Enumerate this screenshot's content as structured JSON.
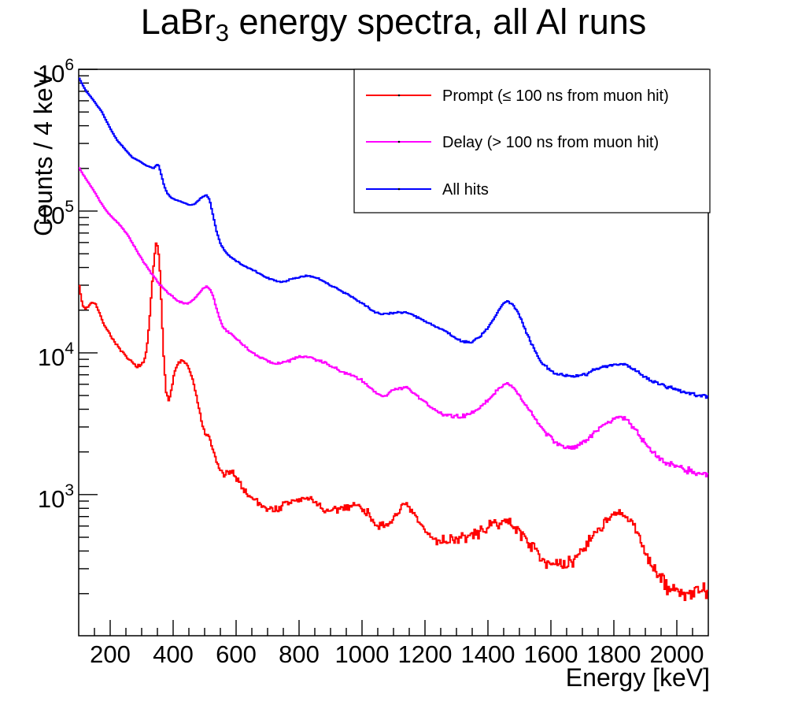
{
  "title": {
    "prefix": "LaBr",
    "subscript": "3",
    "suffix": " energy spectra, all Al runs"
  },
  "chart_data": {
    "type": "line",
    "style": "histogram-step",
    "title": "LaBr3 energy spectra, all Al runs",
    "xlabel": "Energy [keV]",
    "ylabel": "Counts / 4 keV",
    "xlim": [
      100,
      2100
    ],
    "ylim": [
      101,
      1000000
    ],
    "yscale": "log",
    "grid": false,
    "bin_width_kev": 4,
    "xticks_major": [
      200,
      400,
      600,
      800,
      1000,
      1200,
      1400,
      1600,
      1800,
      2000
    ],
    "xtick_minor_step": 50,
    "yticks_major_exponents": [
      3,
      4,
      5,
      6
    ],
    "legend": {
      "position": "top-right",
      "entries": [
        "Prompt (≤ 100 ns from muon hit)",
        "Delay (> 100 ns from muon hit)",
        "All hits"
      ]
    },
    "noise_model": {
      "type": "poisson-approx",
      "seed": 7,
      "amplitude": 2.5
    },
    "series": [
      {
        "name": "Prompt (≤ 100 ns from muon hit)",
        "color": "#ff0000",
        "keypoints": [
          [
            100,
            33000
          ],
          [
            104,
            27500
          ],
          [
            108,
            24000
          ],
          [
            114,
            21500
          ],
          [
            120,
            20500
          ],
          [
            128,
            21000
          ],
          [
            136,
            22000
          ],
          [
            144,
            22800
          ],
          [
            152,
            22500
          ],
          [
            160,
            20500
          ],
          [
            170,
            18000
          ],
          [
            180,
            16000
          ],
          [
            195,
            14000
          ],
          [
            212,
            12200
          ],
          [
            230,
            10600
          ],
          [
            250,
            9400
          ],
          [
            268,
            8600
          ],
          [
            282,
            8100
          ],
          [
            296,
            8100
          ],
          [
            308,
            8600
          ],
          [
            316,
            10500
          ],
          [
            324,
            16000
          ],
          [
            332,
            28000
          ],
          [
            340,
            46000
          ],
          [
            346,
            59000
          ],
          [
            352,
            56000
          ],
          [
            358,
            38000
          ],
          [
            364,
            19000
          ],
          [
            370,
            9500
          ],
          [
            378,
            5400
          ],
          [
            386,
            4600
          ],
          [
            394,
            5400
          ],
          [
            404,
            7200
          ],
          [
            416,
            8500
          ],
          [
            428,
            8800
          ],
          [
            440,
            8500
          ],
          [
            452,
            7600
          ],
          [
            464,
            6200
          ],
          [
            476,
            4700
          ],
          [
            488,
            3500
          ],
          [
            498,
            2800
          ],
          [
            508,
            2600
          ],
          [
            518,
            2400
          ],
          [
            528,
            2000
          ],
          [
            540,
            1650
          ],
          [
            552,
            1450
          ],
          [
            564,
            1380
          ],
          [
            576,
            1420
          ],
          [
            590,
            1400
          ],
          [
            605,
            1300
          ],
          [
            620,
            1120
          ],
          [
            640,
            990
          ],
          [
            660,
            920
          ],
          [
            680,
            850
          ],
          [
            700,
            800
          ],
          [
            720,
            780
          ],
          [
            740,
            810
          ],
          [
            760,
            860
          ],
          [
            780,
            900
          ],
          [
            805,
            920
          ],
          [
            830,
            940
          ],
          [
            855,
            890
          ],
          [
            875,
            790
          ],
          [
            893,
            740
          ],
          [
            912,
            770
          ],
          [
            940,
            810
          ],
          [
            965,
            840
          ],
          [
            985,
            840
          ],
          [
            1005,
            790
          ],
          [
            1030,
            690
          ],
          [
            1055,
            600
          ],
          [
            1075,
            570
          ],
          [
            1095,
            660
          ],
          [
            1115,
            770
          ],
          [
            1132,
            830
          ],
          [
            1150,
            800
          ],
          [
            1170,
            690
          ],
          [
            1195,
            570
          ],
          [
            1220,
            500
          ],
          [
            1245,
            470
          ],
          [
            1270,
            480
          ],
          [
            1300,
            490
          ],
          [
            1330,
            500
          ],
          [
            1365,
            530
          ],
          [
            1400,
            590
          ],
          [
            1430,
            630
          ],
          [
            1455,
            650
          ],
          [
            1480,
            610
          ],
          [
            1510,
            520
          ],
          [
            1545,
            420
          ],
          [
            1580,
            350
          ],
          [
            1615,
            315
          ],
          [
            1645,
            310
          ],
          [
            1675,
            350
          ],
          [
            1710,
            440
          ],
          [
            1745,
            550
          ],
          [
            1775,
            650
          ],
          [
            1800,
            710
          ],
          [
            1820,
            730
          ],
          [
            1842,
            690
          ],
          [
            1865,
            590
          ],
          [
            1890,
            450
          ],
          [
            1915,
            340
          ],
          [
            1945,
            255
          ],
          [
            1975,
            220
          ],
          [
            2010,
            205
          ],
          [
            2050,
            200
          ],
          [
            2075,
            210
          ],
          [
            2100,
            200
          ]
        ]
      },
      {
        "name": "Delay (> 100 ns from muon hit)",
        "color": "#ff00ff",
        "keypoints": [
          [
            100,
            205000
          ],
          [
            115,
            180000
          ],
          [
            130,
            160000
          ],
          [
            150,
            137000
          ],
          [
            170,
            115000
          ],
          [
            190,
            99000
          ],
          [
            210,
            89000
          ],
          [
            230,
            80000
          ],
          [
            252,
            70000
          ],
          [
            272,
            59000
          ],
          [
            292,
            49000
          ],
          [
            312,
            42000
          ],
          [
            332,
            36000
          ],
          [
            352,
            31500
          ],
          [
            372,
            28000
          ],
          [
            392,
            25500
          ],
          [
            412,
            23500
          ],
          [
            432,
            22500
          ],
          [
            448,
            22300
          ],
          [
            464,
            23500
          ],
          [
            480,
            26000
          ],
          [
            495,
            28500
          ],
          [
            508,
            29500
          ],
          [
            520,
            27500
          ],
          [
            532,
            23000
          ],
          [
            544,
            18500
          ],
          [
            556,
            15500
          ],
          [
            570,
            14300
          ],
          [
            590,
            13200
          ],
          [
            615,
            11800
          ],
          [
            640,
            10500
          ],
          [
            665,
            9600
          ],
          [
            695,
            8900
          ],
          [
            725,
            8400
          ],
          [
            750,
            8500
          ],
          [
            780,
            9000
          ],
          [
            810,
            9400
          ],
          [
            835,
            9300
          ],
          [
            865,
            8800
          ],
          [
            900,
            8100
          ],
          [
            940,
            7300
          ],
          [
            975,
            6800
          ],
          [
            1000,
            6400
          ],
          [
            1025,
            5700
          ],
          [
            1050,
            5150
          ],
          [
            1070,
            5000
          ],
          [
            1095,
            5400
          ],
          [
            1120,
            5650
          ],
          [
            1140,
            5700
          ],
          [
            1165,
            5250
          ],
          [
            1190,
            4700
          ],
          [
            1220,
            4150
          ],
          [
            1250,
            3750
          ],
          [
            1280,
            3600
          ],
          [
            1310,
            3550
          ],
          [
            1340,
            3700
          ],
          [
            1370,
            4000
          ],
          [
            1400,
            4600
          ],
          [
            1425,
            5300
          ],
          [
            1448,
            5950
          ],
          [
            1462,
            6100
          ],
          [
            1480,
            5700
          ],
          [
            1505,
            4800
          ],
          [
            1530,
            4000
          ],
          [
            1560,
            3200
          ],
          [
            1590,
            2650
          ],
          [
            1620,
            2300
          ],
          [
            1650,
            2100
          ],
          [
            1680,
            2150
          ],
          [
            1710,
            2400
          ],
          [
            1740,
            2750
          ],
          [
            1770,
            3150
          ],
          [
            1800,
            3450
          ],
          [
            1822,
            3550
          ],
          [
            1845,
            3300
          ],
          [
            1870,
            2850
          ],
          [
            1900,
            2300
          ],
          [
            1930,
            1950
          ],
          [
            1960,
            1700
          ],
          [
            1990,
            1600
          ],
          [
            2025,
            1500
          ],
          [
            2060,
            1450
          ],
          [
            2100,
            1400
          ]
        ]
      },
      {
        "name": "All hits",
        "color": "#0000ff",
        "keypoints": [
          [
            100,
            880000
          ],
          [
            112,
            780000
          ],
          [
            124,
            700000
          ],
          [
            136,
            650000
          ],
          [
            148,
            600000
          ],
          [
            160,
            550000
          ],
          [
            172,
            510000
          ],
          [
            184,
            450000
          ],
          [
            196,
            400000
          ],
          [
            210,
            350000
          ],
          [
            225,
            310000
          ],
          [
            240,
            285000
          ],
          [
            255,
            260000
          ],
          [
            270,
            240000
          ],
          [
            285,
            230000
          ],
          [
            300,
            220000
          ],
          [
            315,
            210000
          ],
          [
            328,
            204000
          ],
          [
            338,
            200000
          ],
          [
            346,
            210000
          ],
          [
            352,
            215000
          ],
          [
            358,
            195000
          ],
          [
            364,
            175000
          ],
          [
            372,
            150000
          ],
          [
            380,
            135000
          ],
          [
            392,
            125000
          ],
          [
            408,
            120000
          ],
          [
            424,
            117000
          ],
          [
            440,
            113000
          ],
          [
            455,
            110000
          ],
          [
            468,
            112000
          ],
          [
            482,
            120000
          ],
          [
            495,
            127000
          ],
          [
            506,
            130000
          ],
          [
            516,
            120000
          ],
          [
            526,
            95000
          ],
          [
            538,
            72000
          ],
          [
            550,
            59000
          ],
          [
            565,
            52000
          ],
          [
            585,
            47000
          ],
          [
            610,
            43000
          ],
          [
            635,
            40000
          ],
          [
            660,
            38000
          ],
          [
            690,
            34500
          ],
          [
            720,
            32500
          ],
          [
            745,
            31500
          ],
          [
            775,
            33000
          ],
          [
            805,
            34500
          ],
          [
            830,
            35000
          ],
          [
            860,
            33500
          ],
          [
            895,
            30500
          ],
          [
            930,
            27500
          ],
          [
            965,
            25000
          ],
          [
            1000,
            22500
          ],
          [
            1030,
            20000
          ],
          [
            1060,
            18700
          ],
          [
            1090,
            19000
          ],
          [
            1120,
            19300
          ],
          [
            1145,
            19200
          ],
          [
            1175,
            17800
          ],
          [
            1205,
            16500
          ],
          [
            1235,
            15300
          ],
          [
            1265,
            14300
          ],
          [
            1295,
            12800
          ],
          [
            1325,
            11900
          ],
          [
            1350,
            12000
          ],
          [
            1375,
            13000
          ],
          [
            1400,
            15000
          ],
          [
            1425,
            18500
          ],
          [
            1448,
            22000
          ],
          [
            1462,
            23200
          ],
          [
            1478,
            22000
          ],
          [
            1500,
            18500
          ],
          [
            1522,
            14000
          ],
          [
            1560,
            9200
          ],
          [
            1590,
            7800
          ],
          [
            1620,
            7100
          ],
          [
            1650,
            6900
          ],
          [
            1680,
            6850
          ],
          [
            1710,
            7000
          ],
          [
            1735,
            7500
          ],
          [
            1770,
            8000
          ],
          [
            1805,
            8300
          ],
          [
            1835,
            8300
          ],
          [
            1865,
            7600
          ],
          [
            1895,
            6800
          ],
          [
            1930,
            6200
          ],
          [
            1965,
            5800
          ],
          [
            2000,
            5500
          ],
          [
            2040,
            5200
          ],
          [
            2070,
            5000
          ],
          [
            2100,
            4900
          ]
        ]
      }
    ]
  }
}
